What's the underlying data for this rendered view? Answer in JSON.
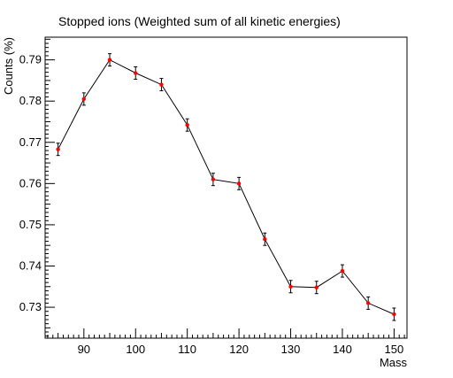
{
  "chart_data": {
    "type": "line",
    "title": "Stopped ions  (Weighted sum of all kinetic energies)",
    "xlabel": "Mass",
    "ylabel": "Counts (%)",
    "xlim": [
      82.5,
      152.5
    ],
    "ylim": [
      0.7225,
      0.7955
    ],
    "x_ticks": [
      90,
      100,
      110,
      120,
      130,
      140,
      150
    ],
    "y_ticks": [
      0.73,
      0.74,
      0.75,
      0.76,
      0.77,
      0.78,
      0.79
    ],
    "x_tick_labels": [
      "90",
      "100",
      "110",
      "120",
      "130",
      "140",
      "150"
    ],
    "y_tick_labels": [
      "0.73",
      "0.74",
      "0.75",
      "0.76",
      "0.77",
      "0.78",
      "0.79"
    ],
    "series": [
      {
        "x": [
          85,
          90,
          95,
          100,
          105,
          110,
          115,
          120,
          125,
          130,
          135,
          140,
          145,
          150
        ],
        "y": [
          0.7683,
          0.7805,
          0.79,
          0.7868,
          0.784,
          0.7742,
          0.761,
          0.76,
          0.7465,
          0.735,
          0.7348,
          0.7388,
          0.731,
          0.7283
        ],
        "yerr": [
          0.0015,
          0.0015,
          0.0015,
          0.0015,
          0.0015,
          0.0015,
          0.0015,
          0.0015,
          0.0015,
          0.0015,
          0.0015,
          0.0015,
          0.0015,
          0.0015
        ],
        "line_color": "#000000",
        "marker_color": "#ff0000"
      }
    ],
    "grid": false,
    "legend": "none"
  }
}
